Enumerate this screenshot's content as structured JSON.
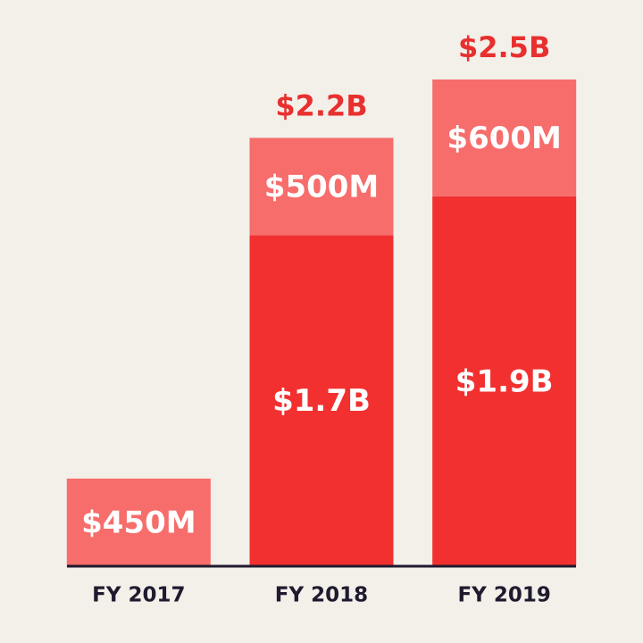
{
  "chart_data": {
    "type": "bar",
    "stacked": true,
    "categories": [
      "FY 2017",
      "FY 2018",
      "FY 2019"
    ],
    "series": [
      {
        "color": "#f23030",
        "values": [
          null,
          1.7,
          1.9
        ],
        "value_labels": [
          null,
          "$1.7B",
          "$1.9B"
        ]
      },
      {
        "color": "#f66d6b",
        "values": [
          0.45,
          0.5,
          0.6
        ],
        "value_labels": [
          "$450M",
          "$500M",
          "$600M"
        ]
      }
    ],
    "totals": {
      "color": "#e8302f",
      "values": [
        null,
        2.2,
        2.5
      ],
      "value_labels": [
        null,
        "$2.2B",
        "$2.5B"
      ]
    },
    "ylim": [
      0,
      2.5
    ]
  }
}
